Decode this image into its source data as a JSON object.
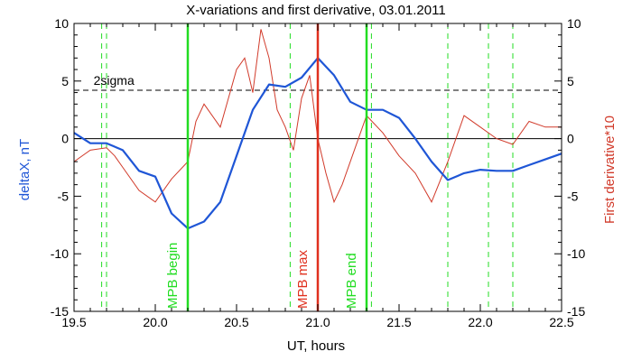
{
  "chart_data": {
    "type": "line",
    "title": "X-variations and first derivative, 03.01.2011",
    "xlabel": "UT, hours",
    "ylabel_left": "deltaX, nT",
    "ylabel_right": "First derivative*10",
    "xlim": [
      19.5,
      22.5
    ],
    "ylim": [
      -15,
      10
    ],
    "x_ticks": [
      "19.5",
      "20.0",
      "20.5",
      "21.0",
      "21.5",
      "22.0",
      "22.5"
    ],
    "y_ticks_left": [
      "10",
      "5",
      "0",
      "-5",
      "-10",
      "-15"
    ],
    "y_ticks_right": [
      "10",
      "5",
      "0",
      "-5",
      "-10",
      "-15"
    ],
    "colors": {
      "deltaX": "#1f56d6",
      "derivative": "#d13a2a",
      "mpb": "#22dd22",
      "max": "#e0301e"
    },
    "series": [
      {
        "name": "deltaX, nT",
        "x": [
          19.5,
          19.6,
          19.7,
          19.8,
          19.9,
          20.0,
          20.1,
          20.2,
          20.3,
          20.4,
          20.5,
          20.6,
          20.7,
          20.8,
          20.9,
          21.0,
          21.1,
          21.2,
          21.3,
          21.4,
          21.5,
          21.6,
          21.7,
          21.8,
          21.9,
          22.0,
          22.1,
          22.2,
          22.3,
          22.4,
          22.5
        ],
        "values": [
          0.5,
          -0.4,
          -0.4,
          -1.0,
          -2.8,
          -3.3,
          -6.5,
          -7.8,
          -7.2,
          -5.5,
          -1.5,
          2.5,
          4.7,
          4.5,
          5.3,
          7.0,
          5.5,
          3.2,
          2.5,
          2.5,
          1.8,
          0.0,
          -2.0,
          -3.6,
          -3.0,
          -2.7,
          -2.8,
          -2.8,
          -2.3,
          -1.8,
          -1.3
        ]
      },
      {
        "name": "First derivative*10",
        "x": [
          19.5,
          19.6,
          19.7,
          19.75,
          19.8,
          19.9,
          20.0,
          20.1,
          20.2,
          20.25,
          20.3,
          20.4,
          20.5,
          20.55,
          20.6,
          20.65,
          20.7,
          20.75,
          20.8,
          20.85,
          20.9,
          20.95,
          21.0,
          21.05,
          21.1,
          21.15,
          21.2,
          21.3,
          21.4,
          21.5,
          21.6,
          21.7,
          21.8,
          21.9,
          22.0,
          22.1,
          22.2,
          22.3,
          22.4,
          22.5
        ],
        "values": [
          -2.0,
          -1.0,
          -0.8,
          -1.5,
          -2.5,
          -4.5,
          -5.5,
          -3.5,
          -2.0,
          1.5,
          3.0,
          1.0,
          6.0,
          7.0,
          4.0,
          9.5,
          7.0,
          2.5,
          1.0,
          -1.0,
          3.5,
          5.5,
          0.0,
          -3.0,
          -5.5,
          -4.0,
          -2.0,
          2.0,
          0.5,
          -1.5,
          -3.0,
          -5.5,
          -2.0,
          2.0,
          1.0,
          0.0,
          -0.5,
          1.5,
          1.0,
          1.0
        ]
      }
    ],
    "threshold": {
      "label": "2sigma",
      "y": 4.2
    },
    "dashed_markers_x": [
      19.67,
      19.7,
      20.83,
      21.33,
      21.8,
      22.05,
      22.2
    ],
    "events": [
      {
        "label": "MPB begin",
        "x": 20.2
      },
      {
        "label": "MPB max",
        "x": 21.0
      },
      {
        "label": "MPB end",
        "x": 21.3
      }
    ]
  }
}
